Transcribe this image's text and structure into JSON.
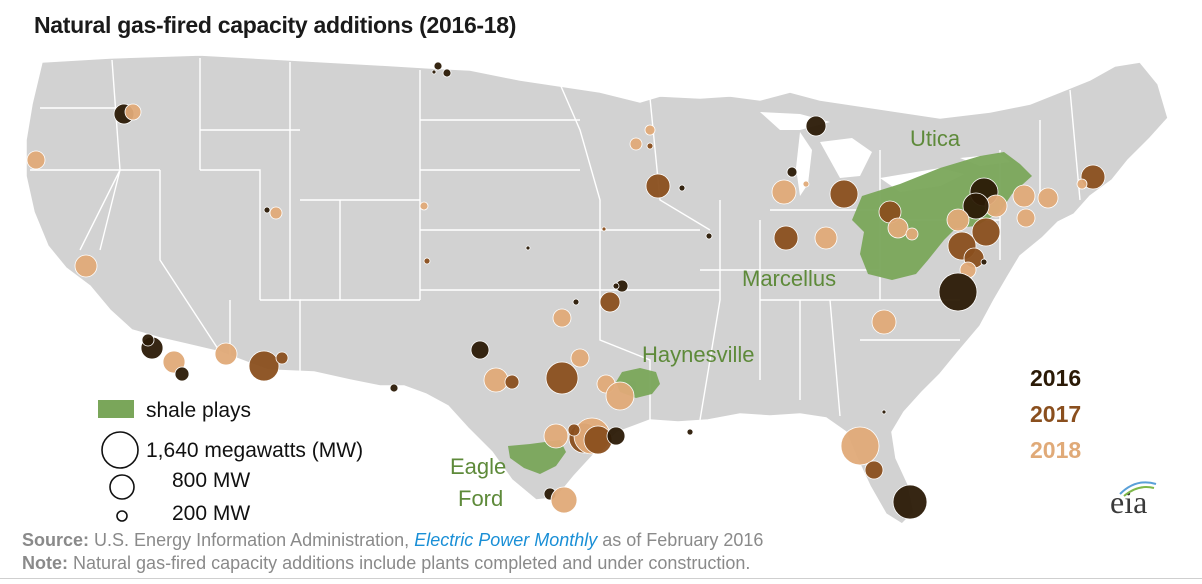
{
  "title": "Natural gas-fired capacity additions (2016-18)",
  "colors": {
    "land": "#d2d2d2",
    "borders": "#ffffff",
    "shale": "#7aa65a",
    "y2016": "#2b1a06",
    "y2017": "#8a4f1e",
    "y2018": "#e0aa78"
  },
  "regions": {
    "utica": "Utica",
    "marcellus": "Marcellus",
    "haynesville": "Haynesville",
    "eagle_ford_1": "Eagle",
    "eagle_ford_2": "Ford"
  },
  "years": [
    "2016",
    "2017",
    "2018"
  ],
  "legend": {
    "shale": "shale plays",
    "size_large": "1,640 megawatts (MW)",
    "size_medium": "800 MW",
    "size_small": "200 MW"
  },
  "source": {
    "label": "Source:",
    "text_before": "U.S. Energy Information Administration,",
    "publication": "Electric Power Monthly",
    "text_after": "as of February 2016"
  },
  "note": {
    "label": "Note:",
    "text": "Natural gas-fired capacity additions include plants completed and under construction."
  },
  "logo": "eia"
}
